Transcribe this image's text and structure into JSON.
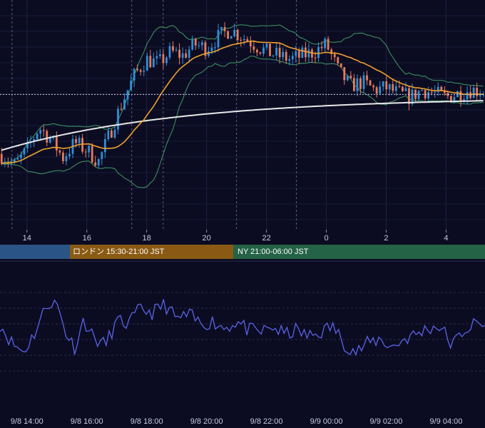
{
  "sessions": {
    "london_label": "ロンドン 15:30-21:00 JST",
    "ny_label": "NY 21:00-06:00 JST",
    "asia_color": "#2a5486",
    "london_color": "#8a5a14",
    "ny_color": "#246345"
  },
  "chart_data": [
    {
      "type": "candlestick",
      "panel": "price",
      "x_ticks": [
        "14",
        "16",
        "18",
        "20",
        "22",
        "0",
        "2",
        "4"
      ],
      "x_tick_hours": [
        14,
        16,
        18,
        20,
        22,
        24,
        26,
        28
      ],
      "x_range_hours": [
        13.1,
        29.3
      ],
      "overlays": [
        {
          "kind": "bollinger_bands",
          "color": "#3f9a62"
        },
        {
          "kind": "moving_average_short",
          "color": "#f0a030"
        },
        {
          "kind": "moving_average_long",
          "color": "#e8e8e8"
        }
      ],
      "up_color": "#2f8fd8",
      "down_color": "#e87a5a",
      "close_path": [
        [
          13.1,
          0.28
        ],
        [
          13.6,
          0.22
        ],
        [
          14.0,
          0.3
        ],
        [
          14.4,
          0.42
        ],
        [
          14.8,
          0.36
        ],
        [
          15.2,
          0.26
        ],
        [
          15.6,
          0.34
        ],
        [
          16.0,
          0.3
        ],
        [
          16.4,
          0.24
        ],
        [
          16.8,
          0.4
        ],
        [
          17.2,
          0.56
        ],
        [
          17.6,
          0.7
        ],
        [
          18.0,
          0.78
        ],
        [
          18.4,
          0.76
        ],
        [
          18.8,
          0.82
        ],
        [
          19.2,
          0.8
        ],
        [
          19.6,
          0.86
        ],
        [
          20.0,
          0.84
        ],
        [
          20.4,
          0.9
        ],
        [
          20.8,
          0.94
        ],
        [
          21.2,
          0.9
        ],
        [
          21.6,
          0.86
        ],
        [
          22.0,
          0.82
        ],
        [
          22.4,
          0.8
        ],
        [
          22.8,
          0.78
        ],
        [
          23.2,
          0.8
        ],
        [
          23.6,
          0.82
        ],
        [
          24.0,
          0.86
        ],
        [
          24.4,
          0.72
        ],
        [
          24.8,
          0.64
        ],
        [
          25.2,
          0.66
        ],
        [
          25.6,
          0.62
        ],
        [
          26.0,
          0.63
        ],
        [
          26.4,
          0.6
        ],
        [
          26.8,
          0.58
        ],
        [
          27.2,
          0.62
        ],
        [
          27.6,
          0.6
        ],
        [
          28.0,
          0.58
        ],
        [
          28.4,
          0.6
        ],
        [
          28.8,
          0.62
        ],
        [
          29.3,
          0.61
        ]
      ],
      "last_price_line": true
    },
    {
      "type": "line",
      "panel": "oscillator",
      "series_color": "#5b63e6",
      "x_ticks": [
        "9/8 14:00",
        "9/8 16:00",
        "9/8 18:00",
        "9/8 20:00",
        "9/8 22:00",
        "9/9 00:00",
        "9/9 02:00",
        "9/9 04:00"
      ],
      "x_tick_hours": [
        14,
        16,
        18,
        20,
        22,
        24,
        26,
        28
      ],
      "x_range_hours": [
        13.1,
        29.3
      ],
      "ylim": [
        0,
        100
      ],
      "grid": true,
      "points": [
        [
          13.1,
          58
        ],
        [
          13.5,
          40
        ],
        [
          13.9,
          32
        ],
        [
          14.3,
          52
        ],
        [
          14.7,
          78
        ],
        [
          15.0,
          76
        ],
        [
          15.3,
          50
        ],
        [
          15.6,
          36
        ],
        [
          15.9,
          62
        ],
        [
          16.2,
          46
        ],
        [
          16.6,
          38
        ],
        [
          17.0,
          60
        ],
        [
          17.4,
          58
        ],
        [
          17.8,
          72
        ],
        [
          18.2,
          68
        ],
        [
          18.6,
          76
        ],
        [
          19.0,
          62
        ],
        [
          19.4,
          66
        ],
        [
          19.8,
          58
        ],
        [
          20.2,
          60
        ],
        [
          20.6,
          54
        ],
        [
          21.0,
          60
        ],
        [
          21.4,
          52
        ],
        [
          21.8,
          50
        ],
        [
          22.2,
          55
        ],
        [
          22.6,
          48
        ],
        [
          23.0,
          52
        ],
        [
          23.4,
          46
        ],
        [
          23.8,
          50
        ],
        [
          24.2,
          56
        ],
        [
          24.6,
          40
        ],
        [
          25.0,
          32
        ],
        [
          25.4,
          40
        ],
        [
          25.8,
          44
        ],
        [
          26.2,
          36
        ],
        [
          26.6,
          44
        ],
        [
          27.0,
          48
        ],
        [
          27.4,
          54
        ],
        [
          27.8,
          56
        ],
        [
          28.2,
          38
        ],
        [
          28.6,
          52
        ],
        [
          29.0,
          58
        ],
        [
          29.3,
          56
        ]
      ]
    }
  ]
}
